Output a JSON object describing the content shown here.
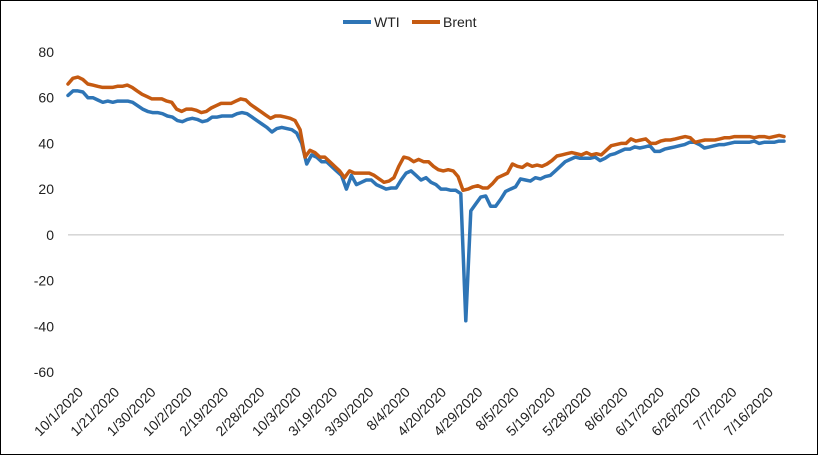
{
  "chart_data": {
    "type": "line",
    "title": "",
    "xlabel": "",
    "ylabel": "",
    "ylim": [
      -60,
      80
    ],
    "y_ticks": [
      80,
      60,
      40,
      20,
      0,
      -20,
      -40,
      -60
    ],
    "x_tick_labels": [
      "10/1/2020",
      "1/21/2020",
      "1/30/2020",
      "10/2/2020",
      "2/19/2020",
      "2/28/2020",
      "10/3/2020",
      "3/19/2020",
      "3/30/2020",
      "8/4/2020",
      "4/20/2020",
      "4/29/2020",
      "8/5/2020",
      "5/19/2020",
      "5/28/2020",
      "8/6/2020",
      "6/17/2020",
      "6/26/2020",
      "7/7/2020",
      "7/16/2020"
    ],
    "grid": false,
    "legend_position": "top-center",
    "series": [
      {
        "name": "WTI",
        "color": "#2E75B6",
        "values": [
          61,
          63,
          63,
          62.5,
          60,
          60,
          59,
          58,
          58.5,
          58,
          58.5,
          58.5,
          58.5,
          58,
          56.5,
          55,
          54,
          53.5,
          53.5,
          53,
          52,
          51.5,
          50,
          49.5,
          50.5,
          51,
          50.5,
          49.5,
          50,
          51.5,
          51.5,
          52,
          52,
          52,
          53,
          53.5,
          53,
          51.5,
          50,
          48.5,
          47,
          45,
          46.5,
          47,
          46.5,
          46,
          44.5,
          40,
          31,
          35,
          34,
          32,
          32,
          30,
          28,
          26,
          20,
          26,
          22,
          23,
          24,
          24,
          22,
          21,
          20,
          20.5,
          20.5,
          24,
          27,
          28,
          26,
          24,
          25,
          23,
          22,
          20,
          20,
          19.5,
          19.5,
          18,
          -37.6,
          10.5,
          13.5,
          16.5,
          17,
          12.5,
          12.5,
          15.5,
          19,
          20,
          21,
          24.5,
          24,
          23.5,
          25,
          24.5,
          25.5,
          26,
          28,
          30,
          32,
          33,
          34,
          33.5,
          33.5,
          33.5,
          34,
          32.5,
          33.5,
          35,
          35.5,
          36.5,
          37.5,
          37.5,
          38.5,
          38,
          38.5,
          39,
          36.5,
          36.5,
          37.5,
          38,
          38.5,
          39,
          39.5,
          40.5,
          40.5,
          39.5,
          38,
          38.5,
          39,
          39.5,
          39.5,
          40,
          40.5,
          40.5,
          40.5,
          40.5,
          41,
          40,
          40.5,
          40.5,
          40.5,
          41,
          41
        ]
      },
      {
        "name": "Brent",
        "color": "#C55A11",
        "values": [
          66,
          68.5,
          69,
          68,
          66,
          65.5,
          65,
          64.5,
          64.5,
          64.5,
          65,
          65,
          65.5,
          64.5,
          63,
          61.5,
          60.5,
          59.5,
          59.5,
          59.5,
          58.5,
          58,
          55,
          54,
          55,
          55,
          54.5,
          53.5,
          54,
          55.5,
          56.5,
          57.5,
          57.5,
          57.5,
          58.5,
          59.5,
          59,
          57,
          55.5,
          54,
          52.5,
          51,
          52,
          52,
          51.5,
          51,
          50,
          46,
          34,
          37,
          36,
          34,
          34,
          32,
          30,
          28,
          25,
          28,
          27,
          27,
          27,
          27,
          26,
          24.5,
          23,
          23.5,
          25,
          30,
          34,
          33.5,
          32,
          33,
          32,
          32,
          30,
          28.5,
          28,
          28.5,
          28,
          25.5,
          19.5,
          20,
          21,
          21.5,
          20.5,
          20.5,
          22.5,
          25,
          26,
          27,
          31,
          30,
          29.5,
          31,
          30,
          30.5,
          30,
          31,
          32.5,
          34.5,
          35,
          35.5,
          36,
          35.5,
          35,
          36,
          35,
          35.5,
          35,
          37,
          39,
          39.5,
          40,
          40,
          42,
          41,
          41.5,
          42,
          40,
          40,
          41,
          41.5,
          41.5,
          42,
          42.5,
          43,
          42.5,
          40.5,
          41,
          41.5,
          41.5,
          41.5,
          42,
          42.5,
          42.5,
          43,
          43,
          43,
          43,
          42.5,
          43,
          43,
          42.5,
          43,
          43.5,
          43
        ]
      }
    ]
  }
}
